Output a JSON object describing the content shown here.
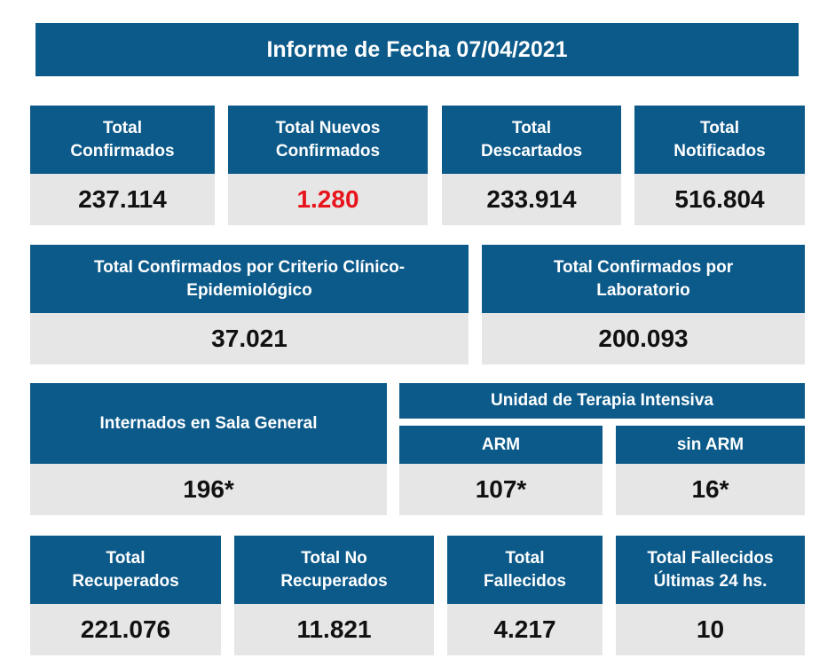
{
  "report_title": "Informe de Fecha 07/04/2021",
  "row1": [
    {
      "label_line1": "Total",
      "label_line2": "Confirmados",
      "value": "237.114"
    },
    {
      "label_line1": "Total Nuevos",
      "label_line2": "Confirmados",
      "value": "1.280",
      "value_color": "#e8141b"
    },
    {
      "label_line1": "Total",
      "label_line2": "Descartados",
      "value": "233.914"
    },
    {
      "label_line1": "Total",
      "label_line2": "Notificados",
      "value": "516.804"
    }
  ],
  "row2": [
    {
      "label_line1": "Total Confirmados por Criterio Clínico-",
      "label_line2": "Epidemiológico",
      "value": "37.021"
    },
    {
      "label_line1": "Total Confirmados por",
      "label_line2": "Laboratorio",
      "value": "200.093"
    }
  ],
  "row3": {
    "sala_general": {
      "label": "Internados en Sala General",
      "value": "196*"
    },
    "uti": {
      "label": "Unidad de Terapia Intensiva",
      "arm": {
        "label": "ARM",
        "value": "107*"
      },
      "sin_arm": {
        "label": "sin ARM",
        "value": "16*"
      }
    }
  },
  "row4": [
    {
      "label_line1": "Total",
      "label_line2": "Recuperados",
      "value": "221.076"
    },
    {
      "label_line1": "Total No",
      "label_line2": "Recuperados",
      "value": "11.821"
    },
    {
      "label_line1": "Total",
      "label_line2": "Fallecidos",
      "value": "4.217"
    },
    {
      "label_line1": "Total Fallecidos",
      "label_line2": "Últimas 24 hs.",
      "value": "10"
    }
  ],
  "colors": {
    "header_bg": "#0c5a8a",
    "value_bg": "#e6e6e6",
    "highlight": "#e8141b"
  }
}
